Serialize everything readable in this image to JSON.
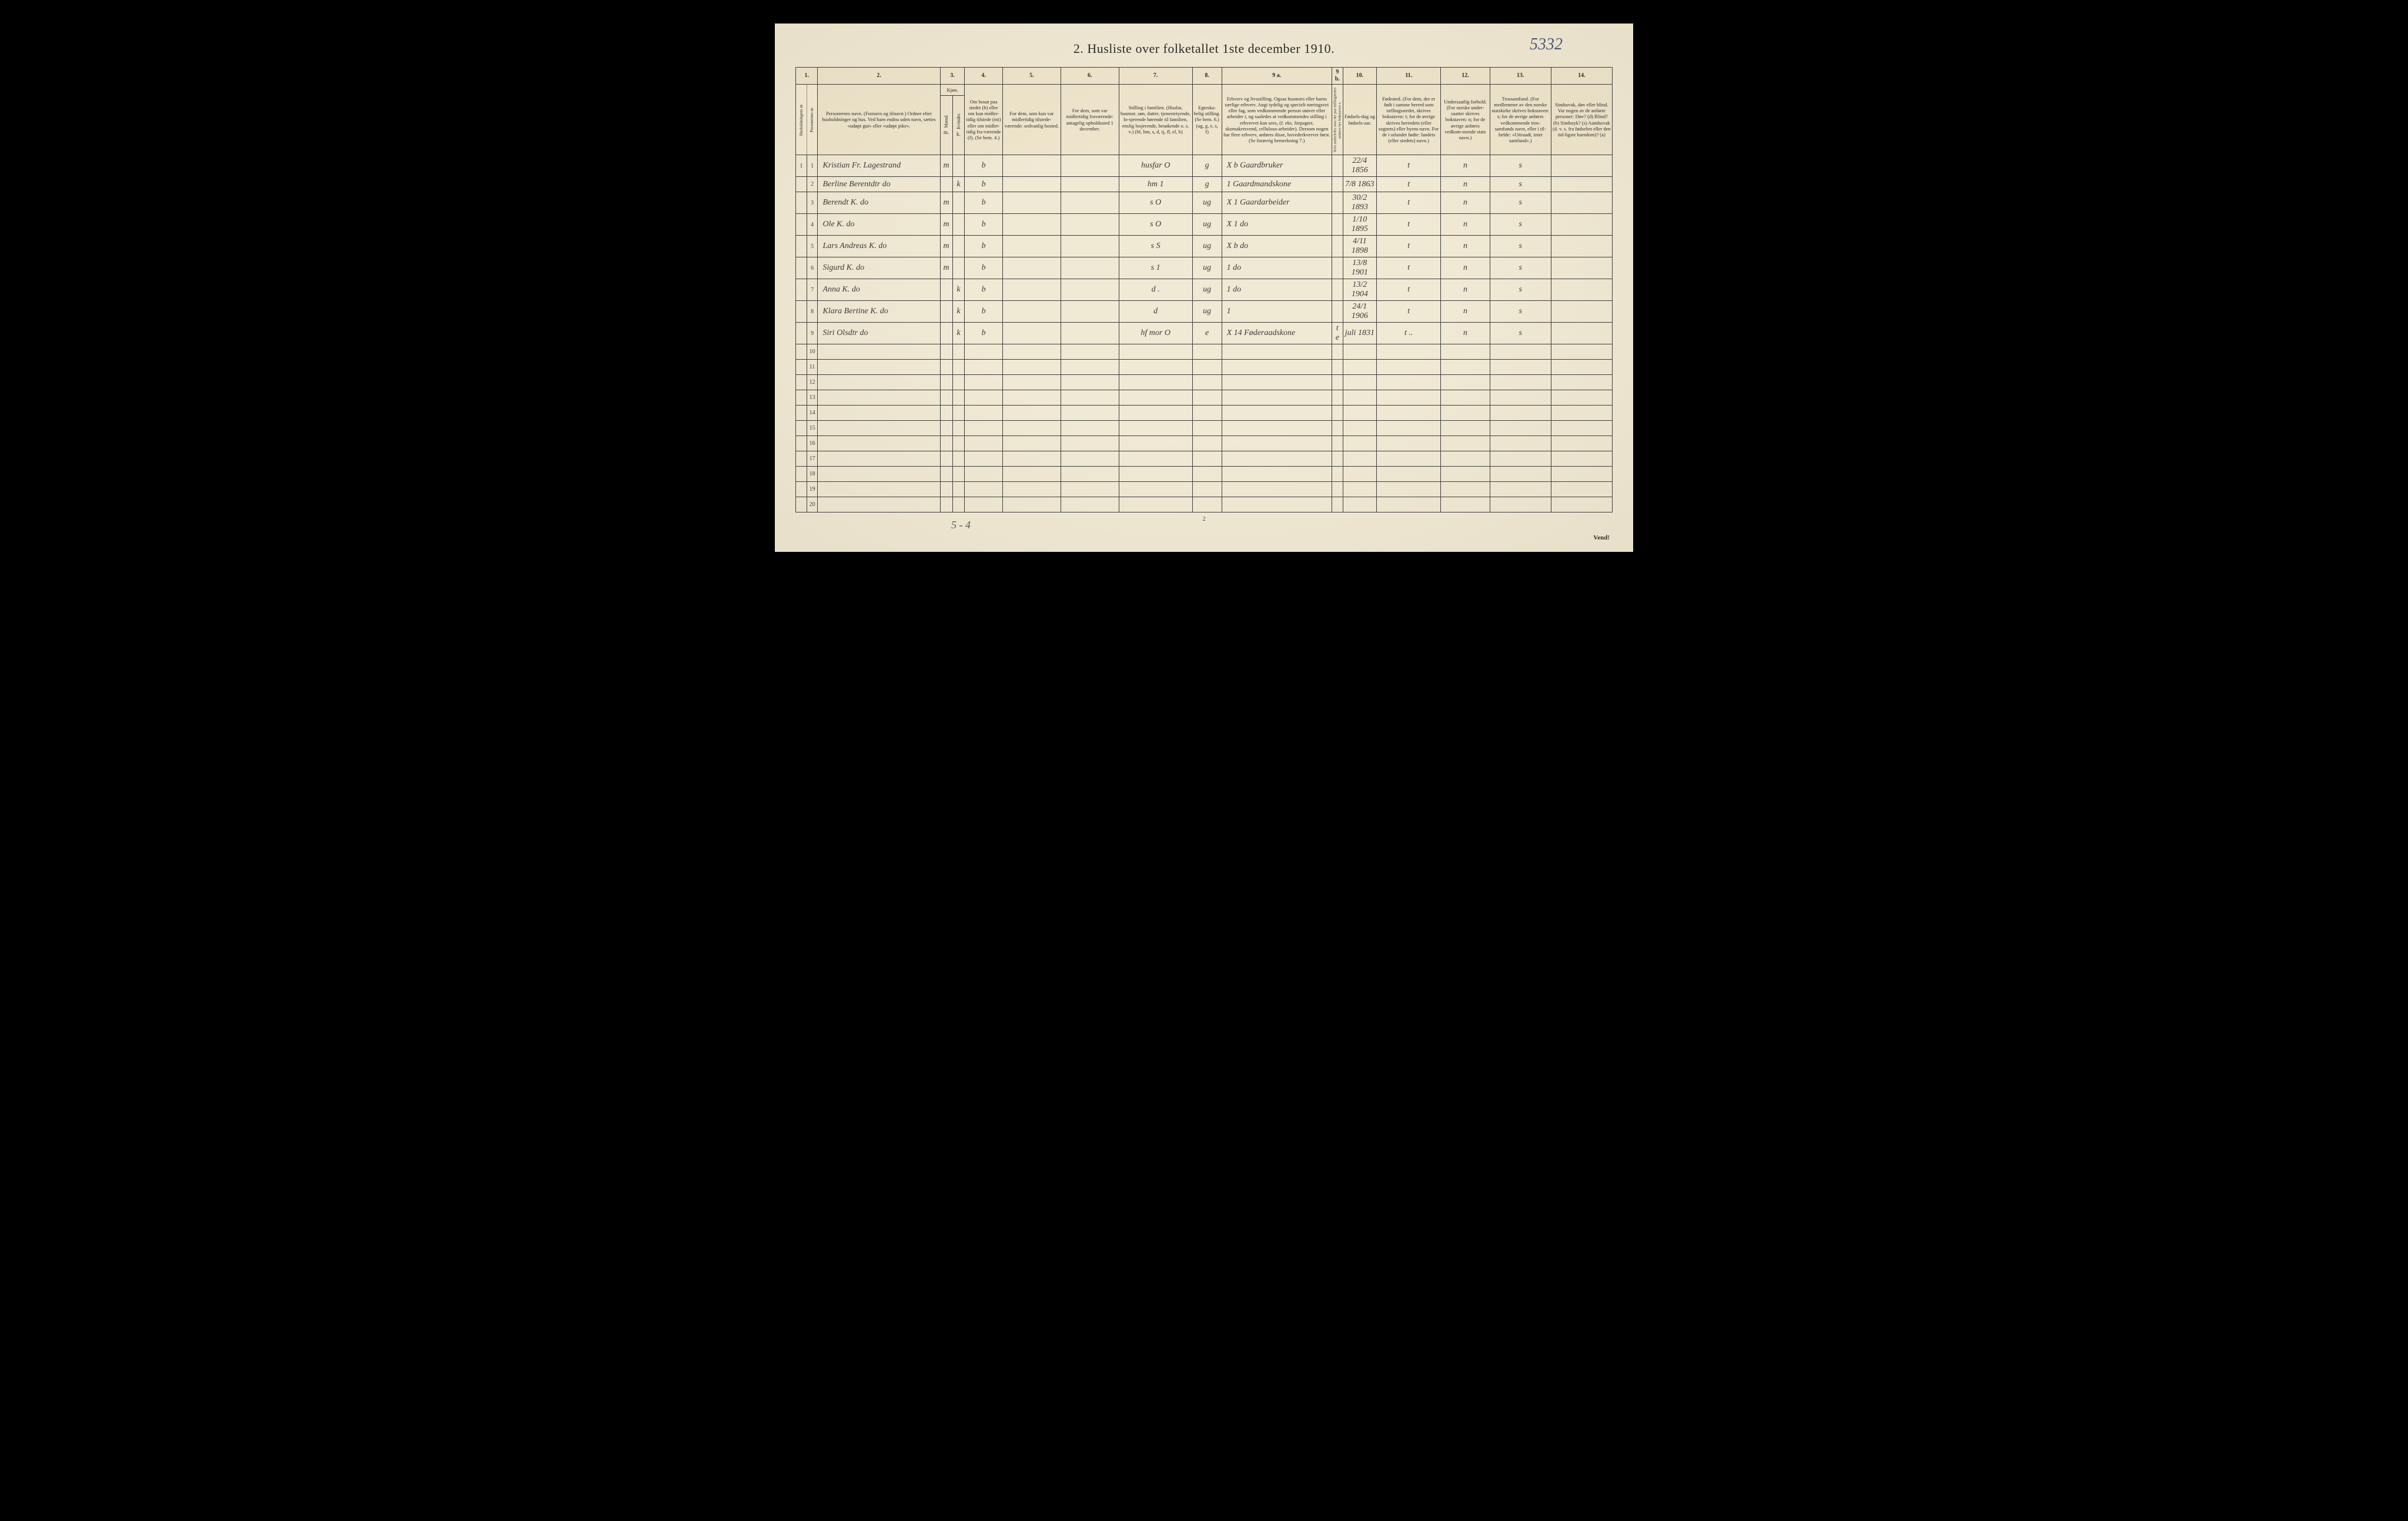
{
  "annotation": "5332",
  "title": "2.  Husliste over folketallet 1ste december 1910.",
  "colnums": [
    "1.",
    "",
    "2.",
    "3.",
    "",
    "4.",
    "5.",
    "6.",
    "7.",
    "8.",
    "9 a.",
    "9 b.",
    "10.",
    "11.",
    "12.",
    "13.",
    "14."
  ],
  "group_headers": {
    "kjon": "Kjøn.",
    "mand": "Mænd.",
    "kvinder": "Kvinder."
  },
  "headers": {
    "h1": "Husholdningens nr.",
    "h1b": "Personernes nr.",
    "h2": "Personernes navn.\n(Fornavn og tilnavn.)\nOrdnet efter husholdninger og hus.\nVed barn endnu uden navn, sættes «udøpt gut» eller «udøpt pike».",
    "h3a": "m.",
    "h3b": "k.",
    "h4": "Om bosat paa stedet (b) eller om kun midler-tidig tilstede (mt) eller om midler-tidig fra-værende (f). (Se bem. 4.)",
    "h5": "For dem, som kun var midlertidig tilstede-værende:\nsedvanlig bosted.",
    "h6": "For dem, som var midlertidig fraværende:\nantagelig opholdssted 1 december.",
    "h7": "Stilling i familien.\n(Husfar, husmor, søn, datter, tjenestetyende, lo-sjerende hørende til familien, enslig losjerende, besøkende o. s. v.)\n(hf, hm, s, d, tj, fl, el, b)",
    "h8": "Egteska-belig stilling.\n(Se bem. 6.)\n(ug, g, e, s, f)",
    "h9a": "Erhverv og livsstilling.\nOgsaa husmors eller barns særlige erhverv.\nAngi tydelig og specielt næringsvei eller fag, som vedkommende person utøver eller arbeider i, og saaledes at vedkommendes stilling i erhvervet kan sees, (f. eks. forpagter, skomakersvend, celluloso-arbeider). Dersom nogen har flere erhverv, anføres disse, hovederkvervet først.\n(Se forøvrig bemerkning 7.)",
    "h9b": "Hvis anderledes maa det paa-tællingstiden anføres her bokstaven e.",
    "h10": "Fødsels-dag og fødsels-aar.",
    "h11": "Fødested.\n(For dem, der er født i samme herred som tællingsstedet, skrives bokstaven: t; for de øvrige skrives herredets (eller sognets) eller byens navn. For de i utlandet fødte: landets (eller stedets) navn.)",
    "h12": "Undersaatlig forhold.\n(For norske under-saatter skrives bokstaven: n; for de øvrige anføres vedkom-mende stats navn.)",
    "h13": "Trossamfund.\n(For medlemmer av den norske statskirke skrives bokstaven: s; for de øvrige anføres vedkommende tros-samfunds navn, eller i til-fælde: «Uttraadt, intet samfund».)",
    "h14": "Sindssvak, døv eller blind.\nVar nogen av de anførte personer:\nDøv?    (d)\nBlind?   (b)\nSindssyk? (s)\nAandssvak (d. v. s. fra fødselen eller den tid-ligste barndom)? (a)"
  },
  "rows": [
    {
      "n": "1",
      "name": "Kristian Fr. Lagestrand",
      "m": "m",
      "k": "",
      "b": "b",
      "c5": "",
      "c6": "",
      "fam": "husfar  O",
      "eg": "g",
      "erh": "X b  Gaardbruker",
      "e": "",
      "fod": "22/4 1856",
      "sted": "t",
      "us": "n",
      "tro": "s",
      "c14": ""
    },
    {
      "n": "2",
      "name": "Berline  Berentdtr    do",
      "m": "",
      "k": "k",
      "b": "b",
      "c5": "",
      "c6": "",
      "fam": "hm      1",
      "eg": "g",
      "erh": "1  Gaardmandskone",
      "e": "",
      "fod": "7/8 1863",
      "sted": "t",
      "us": "n",
      "tro": "s",
      "c14": ""
    },
    {
      "n": "3",
      "name": "Berendt   K.          do",
      "m": "m",
      "k": "",
      "b": "b",
      "c5": "",
      "c6": "",
      "fam": "s   O",
      "eg": "ug",
      "erh": "X 1  Gaardarbeider",
      "e": "",
      "fod": "30/2 1893",
      "sted": "t",
      "us": "n",
      "tro": "s",
      "c14": ""
    },
    {
      "n": "4",
      "name": "Ole       K.          do",
      "m": "m",
      "k": "",
      "b": "b",
      "c5": "",
      "c6": "",
      "fam": "s   O",
      "eg": "ug",
      "erh": "X 1     do",
      "e": "",
      "fod": "1/10 1895",
      "sted": "t",
      "us": "n",
      "tro": "s",
      "c14": ""
    },
    {
      "n": "5",
      "name": "Lars  Andreas K.      do",
      "m": "m",
      "k": "",
      "b": "b",
      "c5": "",
      "c6": "",
      "fam": "s   S",
      "eg": "ug",
      "erh": "X b     do",
      "e": "",
      "fod": "4/11 1898",
      "sted": "t",
      "us": "n",
      "tro": "s",
      "c14": ""
    },
    {
      "n": "6",
      "name": "Sigurd    K.          do",
      "m": "m",
      "k": "",
      "b": "b",
      "c5": "",
      "c6": "",
      "fam": "s   1",
      "eg": "ug",
      "erh": "1       do",
      "e": "",
      "fod": "13/8 1901",
      "sted": "t",
      "us": "n",
      "tro": "s",
      "c14": ""
    },
    {
      "n": "7",
      "name": "Anna      K.          do",
      "m": "",
      "k": "k",
      "b": "b",
      "c5": "",
      "c6": "",
      "fam": "d .",
      "eg": "ug",
      "erh": "1       do",
      "e": "",
      "fod": "13/2 1904",
      "sted": "t",
      "us": "n",
      "tro": "s",
      "c14": ""
    },
    {
      "n": "8",
      "name": "Klara Bertine K.      do",
      "m": "",
      "k": "k",
      "b": "b",
      "c5": "",
      "c6": "",
      "fam": "d",
      "eg": "ug",
      "erh": "1",
      "e": "",
      "fod": "24/1 1906",
      "sted": "t",
      "us": "n",
      "tro": "s",
      "c14": ""
    },
    {
      "n": "9",
      "name": "Siri  Olsdtr          do",
      "m": "",
      "k": "k",
      "b": "b",
      "c5": "",
      "c6": "",
      "fam": "hf mor  O",
      "eg": "e",
      "erh": "X 14  Føderaadskone",
      "e": "t e",
      "fod": "juli 1831",
      "sted": "t  ..",
      "us": "n",
      "tro": "s",
      "c14": ""
    },
    {
      "n": "10",
      "name": "",
      "m": "",
      "k": "",
      "b": "",
      "c5": "",
      "c6": "",
      "fam": "",
      "eg": "",
      "erh": "",
      "e": "",
      "fod": "",
      "sted": "",
      "us": "",
      "tro": "",
      "c14": ""
    },
    {
      "n": "11",
      "name": "",
      "m": "",
      "k": "",
      "b": "",
      "c5": "",
      "c6": "",
      "fam": "",
      "eg": "",
      "erh": "",
      "e": "",
      "fod": "",
      "sted": "",
      "us": "",
      "tro": "",
      "c14": ""
    },
    {
      "n": "12",
      "name": "",
      "m": "",
      "k": "",
      "b": "",
      "c5": "",
      "c6": "",
      "fam": "",
      "eg": "",
      "erh": "",
      "e": "",
      "fod": "",
      "sted": "",
      "us": "",
      "tro": "",
      "c14": ""
    },
    {
      "n": "13",
      "name": "",
      "m": "",
      "k": "",
      "b": "",
      "c5": "",
      "c6": "",
      "fam": "",
      "eg": "",
      "erh": "",
      "e": "",
      "fod": "",
      "sted": "",
      "us": "",
      "tro": "",
      "c14": ""
    },
    {
      "n": "14",
      "name": "",
      "m": "",
      "k": "",
      "b": "",
      "c5": "",
      "c6": "",
      "fam": "",
      "eg": "",
      "erh": "",
      "e": "",
      "fod": "",
      "sted": "",
      "us": "",
      "tro": "",
      "c14": ""
    },
    {
      "n": "15",
      "name": "",
      "m": "",
      "k": "",
      "b": "",
      "c5": "",
      "c6": "",
      "fam": "",
      "eg": "",
      "erh": "",
      "e": "",
      "fod": "",
      "sted": "",
      "us": "",
      "tro": "",
      "c14": ""
    },
    {
      "n": "16",
      "name": "",
      "m": "",
      "k": "",
      "b": "",
      "c5": "",
      "c6": "",
      "fam": "",
      "eg": "",
      "erh": "",
      "e": "",
      "fod": "",
      "sted": "",
      "us": "",
      "tro": "",
      "c14": ""
    },
    {
      "n": "17",
      "name": "",
      "m": "",
      "k": "",
      "b": "",
      "c5": "",
      "c6": "",
      "fam": "",
      "eg": "",
      "erh": "",
      "e": "",
      "fod": "",
      "sted": "",
      "us": "",
      "tro": "",
      "c14": ""
    },
    {
      "n": "18",
      "name": "",
      "m": "",
      "k": "",
      "b": "",
      "c5": "",
      "c6": "",
      "fam": "",
      "eg": "",
      "erh": "",
      "e": "",
      "fod": "",
      "sted": "",
      "us": "",
      "tro": "",
      "c14": ""
    },
    {
      "n": "19",
      "name": "",
      "m": "",
      "k": "",
      "b": "",
      "c5": "",
      "c6": "",
      "fam": "",
      "eg": "",
      "erh": "",
      "e": "",
      "fod": "",
      "sted": "",
      "us": "",
      "tro": "",
      "c14": ""
    },
    {
      "n": "20",
      "name": "",
      "m": "",
      "k": "",
      "b": "",
      "c5": "",
      "c6": "",
      "fam": "",
      "eg": "",
      "erh": "",
      "e": "",
      "fod": "",
      "sted": "",
      "us": "",
      "tro": "",
      "c14": ""
    }
  ],
  "footer_left": "5 - 4",
  "footer_center": "2",
  "footer_right": "Vend!"
}
